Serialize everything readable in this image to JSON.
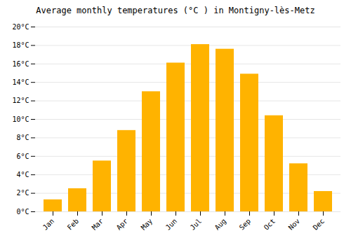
{
  "chart_data": {
    "type": "bar",
    "title": "Average monthly temperatures (°C ) in Montigny-lès-Metz",
    "categories": [
      "Jan",
      "Feb",
      "Mar",
      "Apr",
      "May",
      "Jun",
      "Jul",
      "Aug",
      "Sep",
      "Oct",
      "Nov",
      "Dec"
    ],
    "values": [
      1.3,
      2.5,
      5.5,
      8.8,
      13.0,
      16.1,
      18.1,
      17.6,
      14.9,
      10.4,
      5.2,
      2.2
    ],
    "color": "#FFB300",
    "ylim": [
      0,
      20
    ],
    "yticks": [
      {
        "value": 0,
        "label": "0°C"
      },
      {
        "value": 2,
        "label": "2°C"
      },
      {
        "value": 4,
        "label": "4°C"
      },
      {
        "value": 6,
        "label": "6°C"
      },
      {
        "value": 8,
        "label": "8°C"
      },
      {
        "value": 10,
        "label": "10°C"
      },
      {
        "value": 12,
        "label": "12°C"
      },
      {
        "value": 14,
        "label": "14°C"
      },
      {
        "value": 16,
        "label": "16°C"
      },
      {
        "value": 18,
        "label": "18°C"
      },
      {
        "value": 20,
        "label": "20°C"
      }
    ],
    "grid": true
  }
}
